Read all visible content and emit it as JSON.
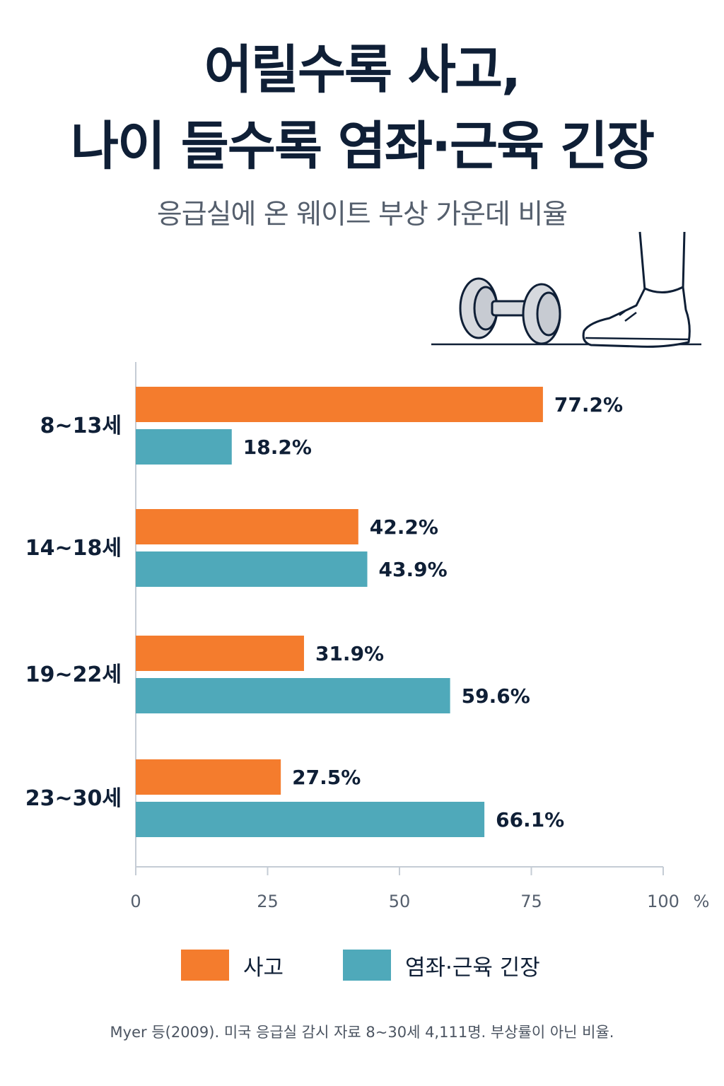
{
  "title_line1": "어릴수록 사고,",
  "title_line2": "나이 들수록 염좌·근육 긴장",
  "subtitle": "응급실에 온 웨이트 부상 가운데 비율",
  "source_note": "Myer 등(2009). 미국 응급실 감시 자료 8~30세 4,111명. 부상률이 아닌 비율.",
  "colors": {
    "accident": "#f47c2d",
    "strain": "#4fa9ba",
    "text": "#0f1f36",
    "axis": "#c5ccd5",
    "muted": "#555f6d"
  },
  "chart_data": {
    "type": "bar",
    "orientation": "horizontal",
    "categories": [
      "8~13세",
      "14~18세",
      "19~22세",
      "23~30세"
    ],
    "series": [
      {
        "name": "사고",
        "values": [
          77.2,
          42.2,
          31.9,
          27.5
        ],
        "labels": [
          "77.2%",
          "42.2%",
          "31.9%",
          "27.5%"
        ]
      },
      {
        "name": "염좌·근육 긴장",
        "values": [
          18.2,
          43.9,
          59.6,
          66.1
        ],
        "labels": [
          "18.2%",
          "43.9%",
          "59.6%",
          "66.1%"
        ]
      }
    ],
    "xlim": [
      0,
      100
    ],
    "xticks": [
      "0",
      "25",
      "50",
      "75",
      "100"
    ],
    "xunit": "%",
    "grid": false,
    "legend_position": "bottom"
  }
}
